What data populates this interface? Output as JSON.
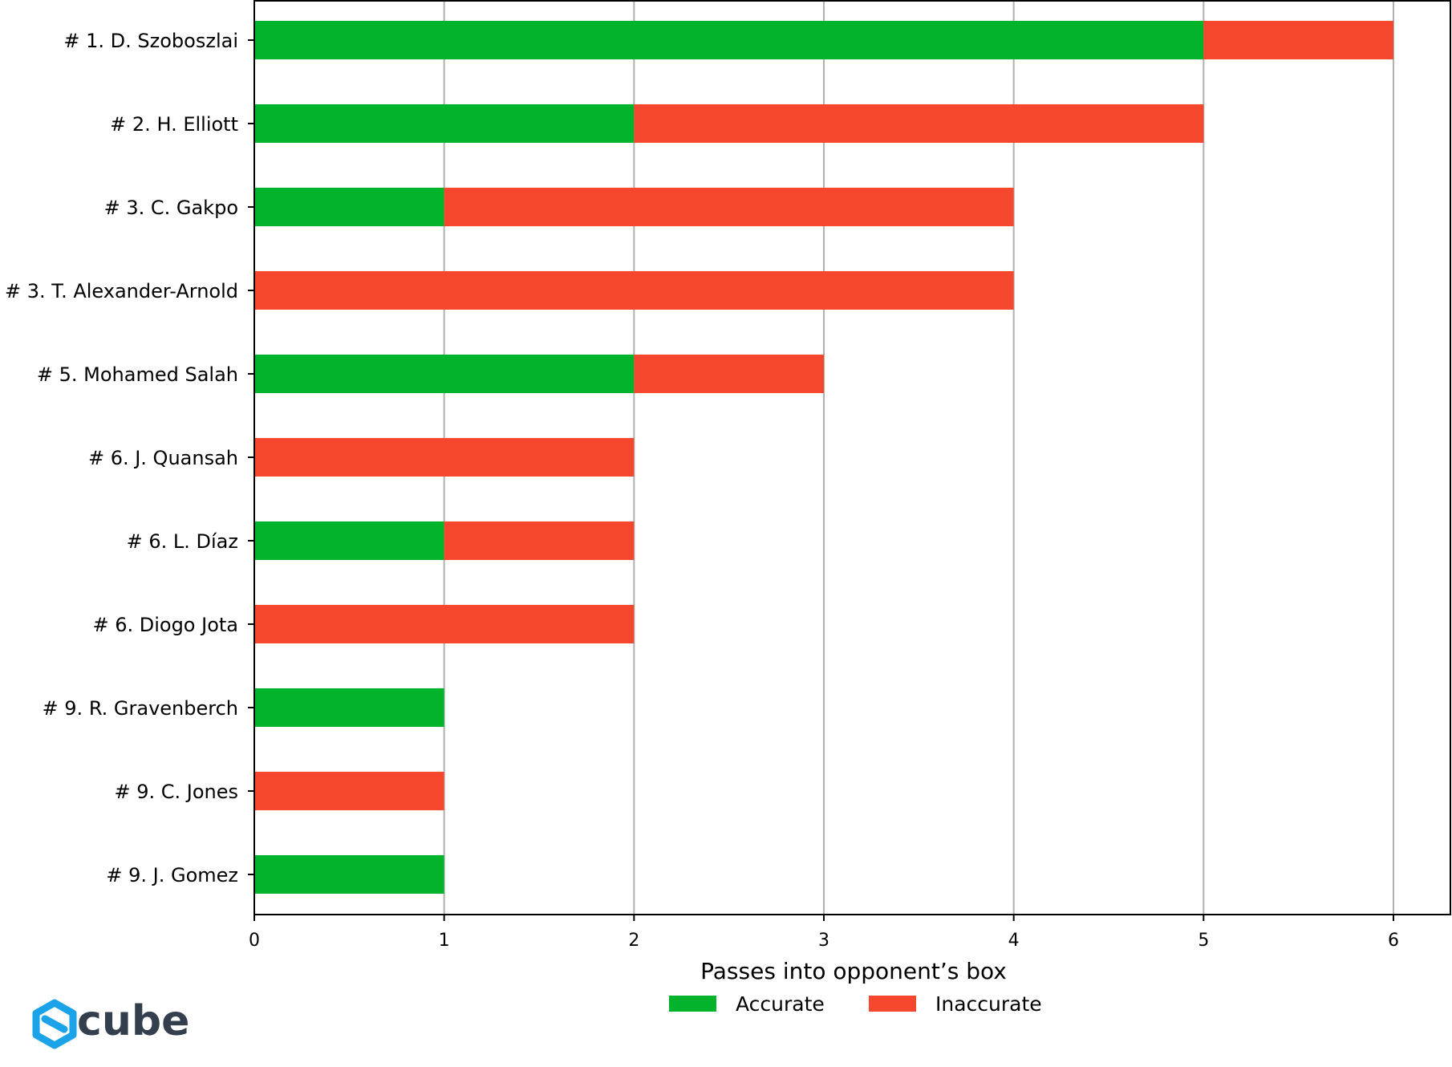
{
  "chart_data": {
    "type": "bar",
    "orientation": "horizontal",
    "stacked": true,
    "categories": [
      "# 1.  D. Szoboszlai",
      "# 2.  H. Elliott",
      "# 3.  C. Gakpo",
      "# 3.  T. Alexander-Arnold",
      "# 5.  Mohamed Salah",
      "# 6.  J. Quansah",
      "# 6.  L. Díaz",
      "# 6.  Diogo Jota",
      "# 9.  R. Gravenberch",
      "# 9.  C. Jones",
      "# 9.  J. Gomez"
    ],
    "series": [
      {
        "name": "Accurate",
        "color": "#03b32c",
        "values": [
          5,
          2,
          1,
          0,
          2,
          0,
          1,
          0,
          1,
          0,
          1
        ]
      },
      {
        "name": "Inaccurate",
        "color": "#f5472d",
        "values": [
          1,
          3,
          3,
          4,
          1,
          2,
          1,
          2,
          0,
          1,
          0
        ]
      }
    ],
    "xlabel": "Passes into opponent’s box",
    "ylabel": "",
    "xlim": [
      0,
      6.3
    ],
    "xticks": [
      "0",
      "1",
      "2",
      "3",
      "4",
      "5",
      "6"
    ],
    "grid": "vertical",
    "legend": "bottom-center"
  },
  "logo": {
    "text": "cube",
    "icon": "cube-logo-icon",
    "color": "#1aa3e8"
  }
}
